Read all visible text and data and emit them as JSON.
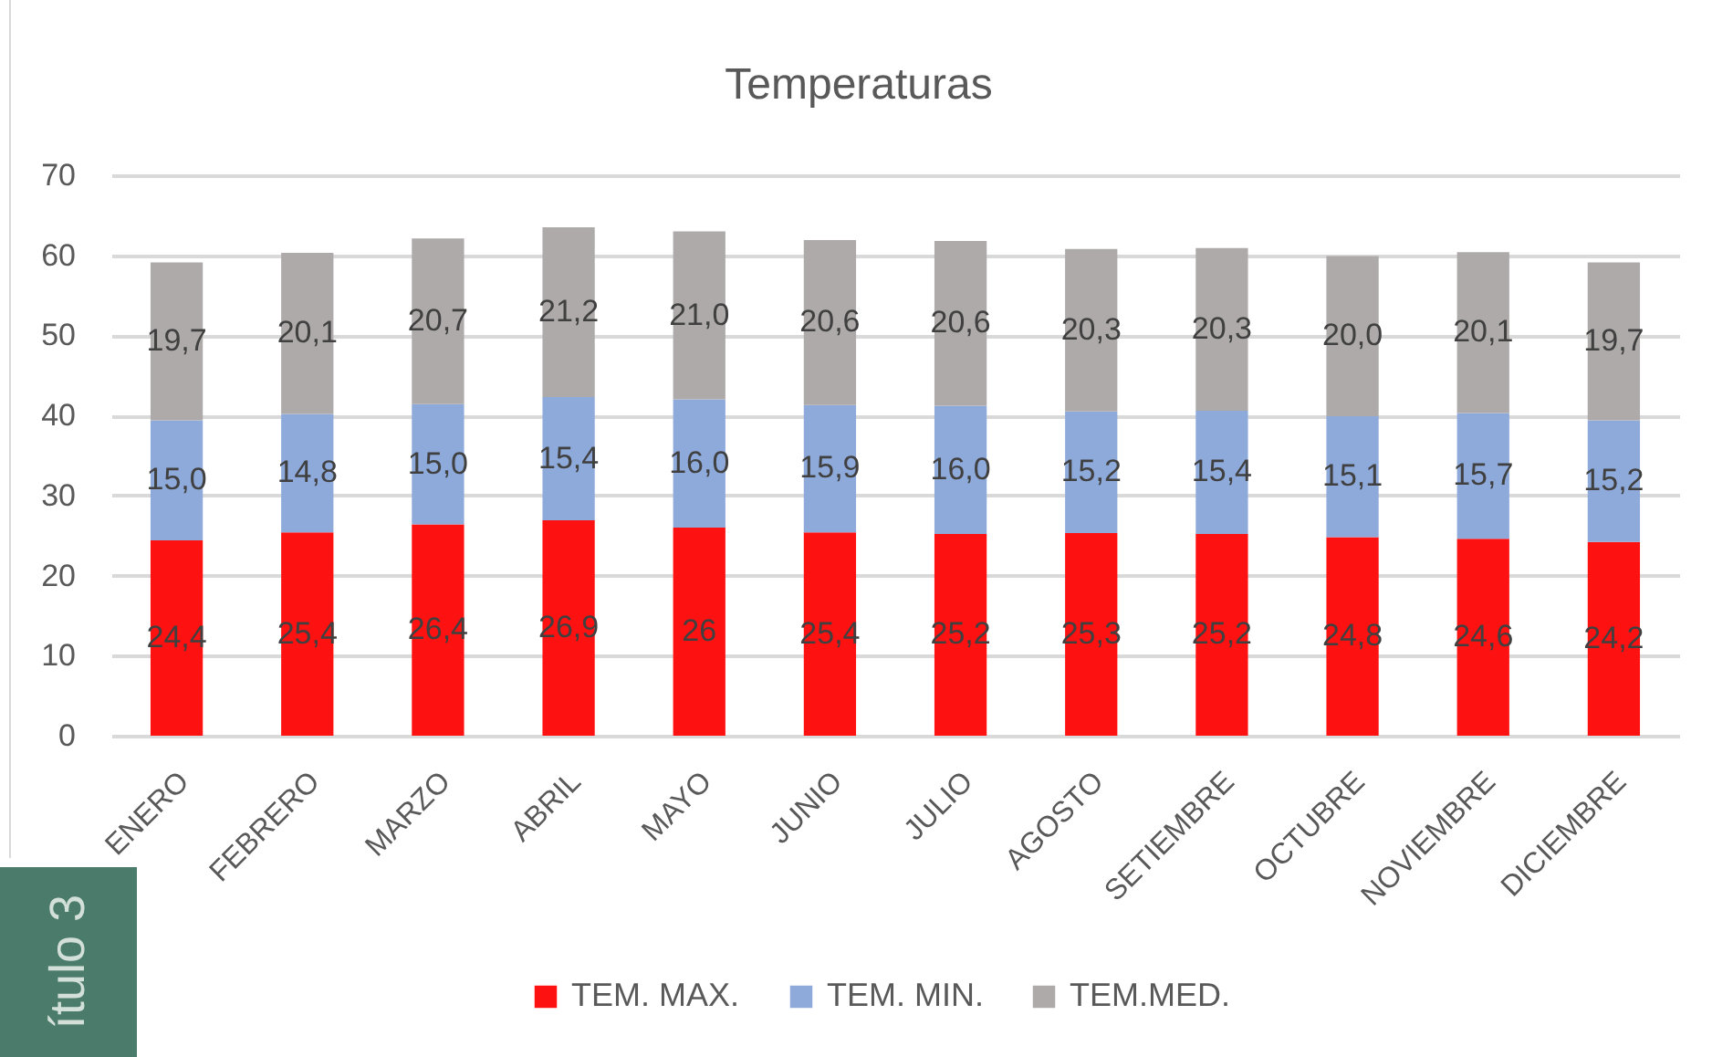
{
  "chart_data": {
    "type": "bar",
    "title": "Temperaturas",
    "categories": [
      "ENERO",
      "FEBRERO",
      "MARZO",
      "ABRIL",
      "MAYO",
      "JUNIO",
      "JULIO",
      "AGOSTO",
      "SETIEMBRE",
      "OCTUBRE",
      "NOVIEMBRE",
      "DICIEMBRE"
    ],
    "series": [
      {
        "name": "TEM. MAX.",
        "color": "#fe1111",
        "values": [
          24.4,
          25.4,
          26.4,
          26.9,
          26,
          25.4,
          25.2,
          25.3,
          25.2,
          24.8,
          24.6,
          24.2
        ],
        "value_labels": [
          "24,4",
          "25,4",
          "26,4",
          "26,9",
          "26",
          "25,4",
          "25,2",
          "25,3",
          "25,2",
          "24,8",
          "24,6",
          "24,2"
        ]
      },
      {
        "name": "TEM. MIN.",
        "color": "#8eaadb",
        "values": [
          15.0,
          14.8,
          15.0,
          15.4,
          16.0,
          15.9,
          16.0,
          15.2,
          15.4,
          15.1,
          15.7,
          15.2
        ],
        "value_labels": [
          "15,0",
          "14,8",
          "15,0",
          "15,4",
          "16,0",
          "15,9",
          "16,0",
          "15,2",
          "15,4",
          "15,1",
          "15,7",
          "15,2"
        ]
      },
      {
        "name": "TEM.MED.",
        "color": "#aeaaaa",
        "values": [
          19.7,
          20.1,
          20.7,
          21.2,
          21.0,
          20.6,
          20.6,
          20.3,
          20.3,
          20.0,
          20.1,
          19.7
        ],
        "value_labels": [
          "19,7",
          "20,1",
          "20,7",
          "21,2",
          "21,0",
          "20,6",
          "20,6",
          "20,3",
          "20,3",
          "20,0",
          "20,1",
          "19,7"
        ]
      }
    ],
    "stacked": true,
    "ylim": [
      0,
      70
    ],
    "yticks": [
      0,
      10,
      20,
      30,
      40,
      50,
      60,
      70
    ],
    "grid": "y",
    "legend": "bottom",
    "annotations": [
      "ítulo 3"
    ]
  }
}
